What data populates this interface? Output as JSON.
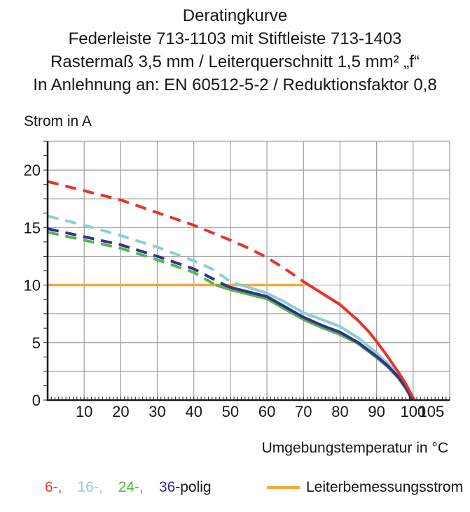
{
  "title": {
    "line1": "Deratingkurve",
    "line2": "Federleiste 713-1103 mit Stiftleiste 713-1403",
    "line3": "Rastermaß 3,5 mm / Leiterquerschnitt 1,5 mm² „f“",
    "line4": "In Anlehnung an: EN 60512-5-2 / Reduktionsfaktor 0,8"
  },
  "chart_data": {
    "type": "line",
    "ylabel": "Strom in A",
    "xlabel": "Umgebungstemperatur in °C",
    "x_range": [
      0,
      110
    ],
    "y_range": [
      0,
      22.5
    ],
    "x_grid_step": 10,
    "y_grid_step": 2.5,
    "x_minor_tick_step": 1,
    "y_minor_tick_step": 1.25,
    "grid": true,
    "colors": {
      "grid": "#9e9e9e",
      "axis": "#1a1a1a",
      "tick_text": "#161616"
    },
    "x_tick_labels": [
      {
        "value": 10,
        "label": "10"
      },
      {
        "value": 20,
        "label": "20"
      },
      {
        "value": 30,
        "label": "30"
      },
      {
        "value": 40,
        "label": "40"
      },
      {
        "value": 50,
        "label": "50"
      },
      {
        "value": 60,
        "label": "60"
      },
      {
        "value": 70,
        "label": "70"
      },
      {
        "value": 80,
        "label": "80"
      },
      {
        "value": 90,
        "label": "90"
      },
      {
        "value": 100,
        "label": "100"
      },
      {
        "value": 105,
        "label": "105"
      }
    ],
    "y_tick_labels": [
      {
        "value": 0,
        "label": "0"
      },
      {
        "value": 5,
        "label": "5"
      },
      {
        "value": 10,
        "label": "10"
      },
      {
        "value": 15,
        "label": "15"
      },
      {
        "value": 20,
        "label": "20"
      }
    ],
    "series": [
      {
        "name": "24-polig",
        "color": "#56b44c",
        "solid_from_x": 46,
        "points": [
          [
            0,
            14.6
          ],
          [
            10,
            13.9
          ],
          [
            20,
            13.2
          ],
          [
            30,
            12.2
          ],
          [
            40,
            11.1
          ],
          [
            46,
            10.0
          ],
          [
            50,
            9.6
          ],
          [
            55,
            9.2
          ],
          [
            60,
            8.8
          ],
          [
            65,
            7.9
          ],
          [
            70,
            7.0
          ],
          [
            75,
            6.3
          ],
          [
            80,
            5.7
          ],
          [
            85,
            4.9
          ],
          [
            90,
            3.7
          ],
          [
            93,
            2.9
          ],
          [
            96,
            1.9
          ],
          [
            98,
            1.0
          ],
          [
            99.8,
            0
          ]
        ]
      },
      {
        "name": "16-polig",
        "color": "#8ecfd3",
        "solid_from_x": 51.5,
        "points": [
          [
            0,
            16.0
          ],
          [
            10,
            15.2
          ],
          [
            20,
            14.3
          ],
          [
            30,
            13.3
          ],
          [
            40,
            12.1
          ],
          [
            45,
            11.4
          ],
          [
            50,
            10.3
          ],
          [
            55,
            9.8
          ],
          [
            60,
            9.3
          ],
          [
            65,
            8.5
          ],
          [
            70,
            7.6
          ],
          [
            75,
            7.0
          ],
          [
            80,
            6.4
          ],
          [
            85,
            5.4
          ],
          [
            90,
            4.1
          ],
          [
            93,
            3.2
          ],
          [
            96,
            2.1
          ],
          [
            98,
            1.2
          ],
          [
            100,
            0
          ]
        ]
      },
      {
        "name": "36-polig",
        "color": "#34318c",
        "solid_from_x": 48.5,
        "points": [
          [
            0,
            14.9
          ],
          [
            10,
            14.2
          ],
          [
            20,
            13.5
          ],
          [
            30,
            12.5
          ],
          [
            40,
            11.4
          ],
          [
            48.5,
            10.0
          ],
          [
            50,
            9.8
          ],
          [
            55,
            9.4
          ],
          [
            60,
            9.0
          ],
          [
            65,
            8.1
          ],
          [
            70,
            7.2
          ],
          [
            75,
            6.5
          ],
          [
            80,
            5.9
          ],
          [
            85,
            5.0
          ],
          [
            90,
            3.8
          ],
          [
            93,
            3.0
          ],
          [
            96,
            2.0
          ],
          [
            98,
            1.1
          ],
          [
            99.8,
            0
          ]
        ]
      },
      {
        "name": "6-polig",
        "color": "#e5352b",
        "solid_from_x": 70.3,
        "points": [
          [
            0,
            19.0
          ],
          [
            10,
            18.2
          ],
          [
            20,
            17.4
          ],
          [
            30,
            16.3
          ],
          [
            40,
            15.2
          ],
          [
            50,
            13.9
          ],
          [
            55,
            13.2
          ],
          [
            60,
            12.4
          ],
          [
            65,
            11.4
          ],
          [
            70,
            10.3
          ],
          [
            75,
            9.3
          ],
          [
            80,
            8.3
          ],
          [
            85,
            6.9
          ],
          [
            88,
            5.9
          ],
          [
            90,
            5.1
          ],
          [
            93,
            3.8
          ],
          [
            96,
            2.4
          ],
          [
            98,
            1.4
          ],
          [
            100.3,
            0
          ]
        ]
      }
    ],
    "reference_line": {
      "name": "Leiterbemessungsstrom",
      "color": "#f4a93c",
      "y": 10,
      "x_start": 0,
      "x_end": 70.3
    }
  },
  "legend": {
    "items": [
      {
        "label": "6-,",
        "color": "#e5352b"
      },
      {
        "label": "16-,",
        "color": "#8ecfd3"
      },
      {
        "label": "24-,",
        "color": "#56b44c"
      },
      {
        "label": "36",
        "color": "#34318c"
      }
    ],
    "suffix": "-polig"
  }
}
